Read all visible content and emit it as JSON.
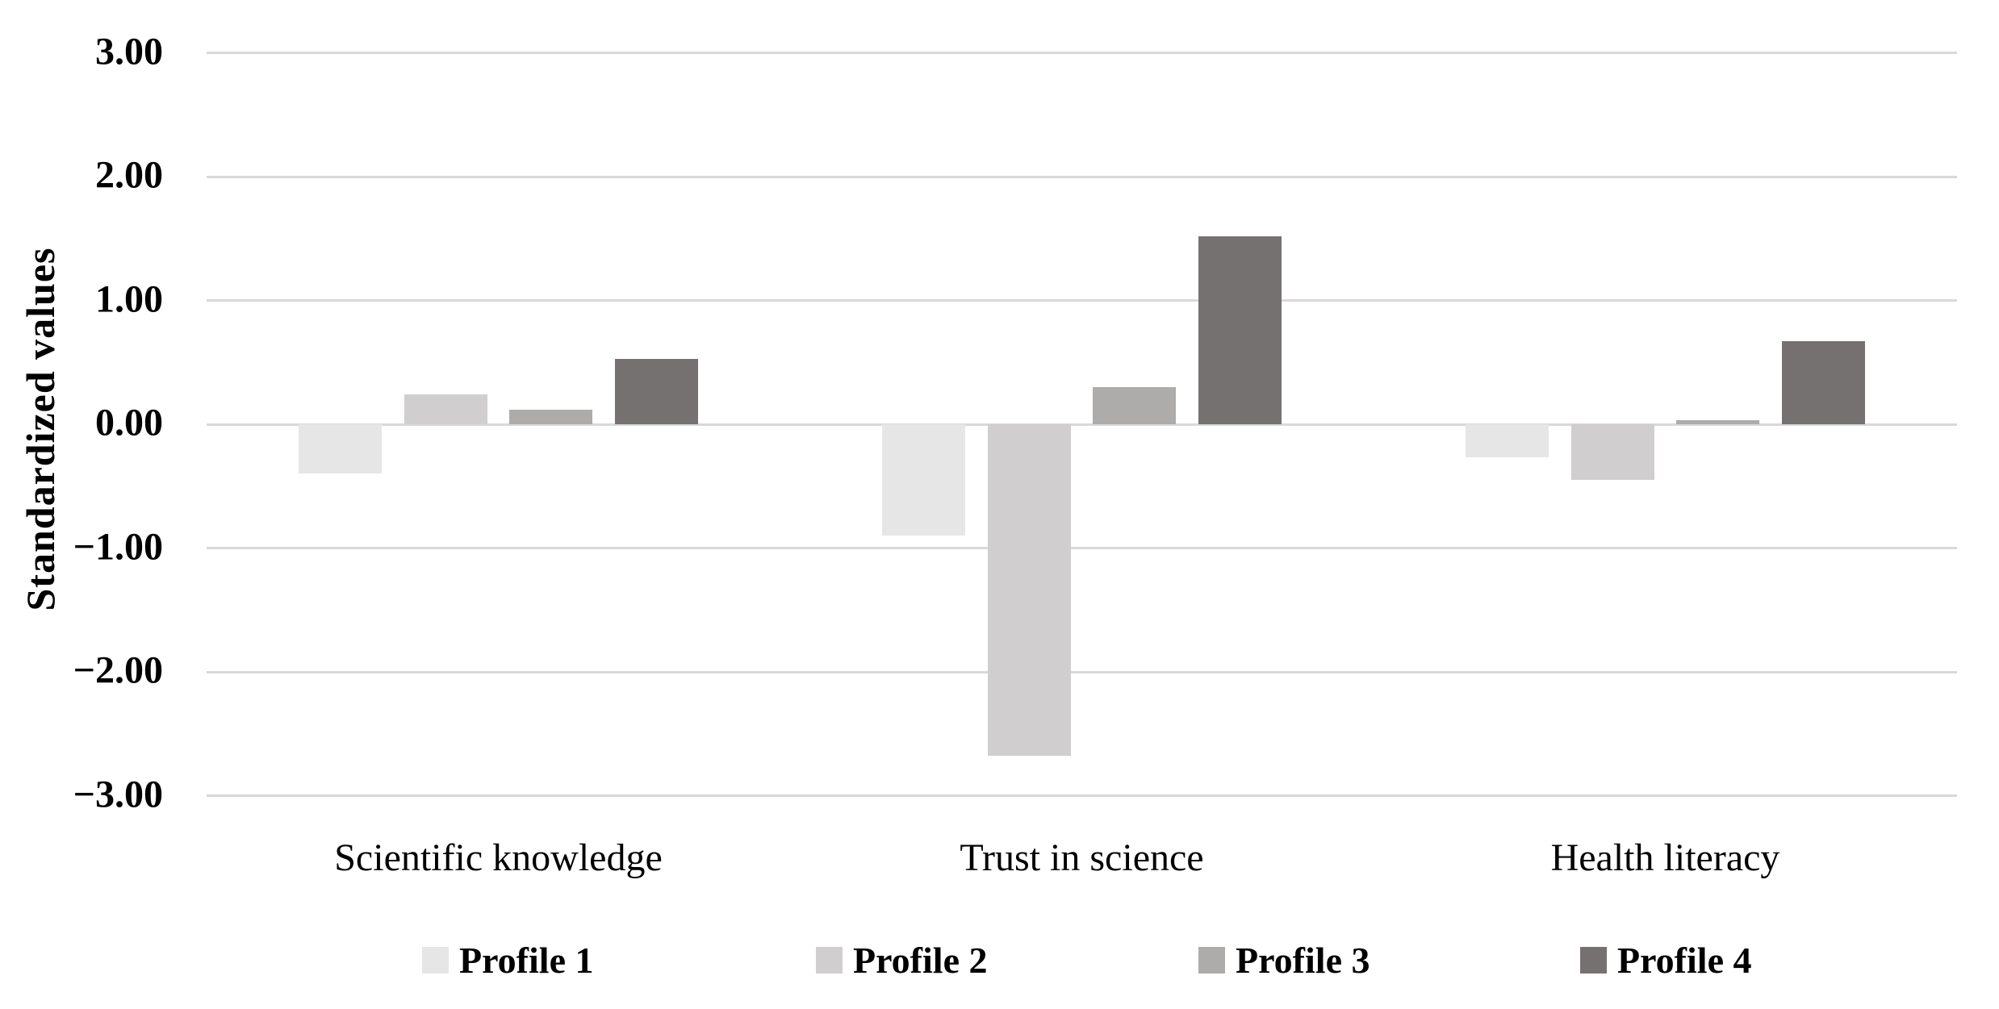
{
  "chart_data": {
    "type": "bar",
    "title": "",
    "ylabel": "Standardized values",
    "xlabel": "",
    "categories": [
      "Scientific knowledge",
      "Trust in science",
      "Health literacy"
    ],
    "series": [
      {
        "name": "Profile 1",
        "color": "#E7E6E6",
        "values": [
          -0.4,
          -0.9,
          -0.27
        ]
      },
      {
        "name": "Profile 2",
        "color": "#D0CECE",
        "values": [
          0.24,
          -2.68,
          -0.45
        ]
      },
      {
        "name": "Profile 3",
        "color": "#AEABAB",
        "values": [
          0.12,
          0.3,
          0.03
        ]
      },
      {
        "name": "Profile 4",
        "color": "#767171",
        "values": [
          0.53,
          1.52,
          0.67
        ]
      }
    ],
    "yticks": [
      {
        "label": "3.00",
        "value": 3
      },
      {
        "label": "2.00",
        "value": 2
      },
      {
        "label": "1.00",
        "value": 1
      },
      {
        "label": "0.00",
        "value": 0
      },
      {
        "label": "−1.00",
        "value": -1
      },
      {
        "label": "−2.00",
        "value": -2
      },
      {
        "label": "−3.00",
        "value": -3
      }
    ],
    "ylim": [
      -3,
      3
    ],
    "grid": true,
    "legend_position": "bottom",
    "gridline_color": "#D9D9D9",
    "text_color": "#000000",
    "background": "#FFFFFF"
  }
}
